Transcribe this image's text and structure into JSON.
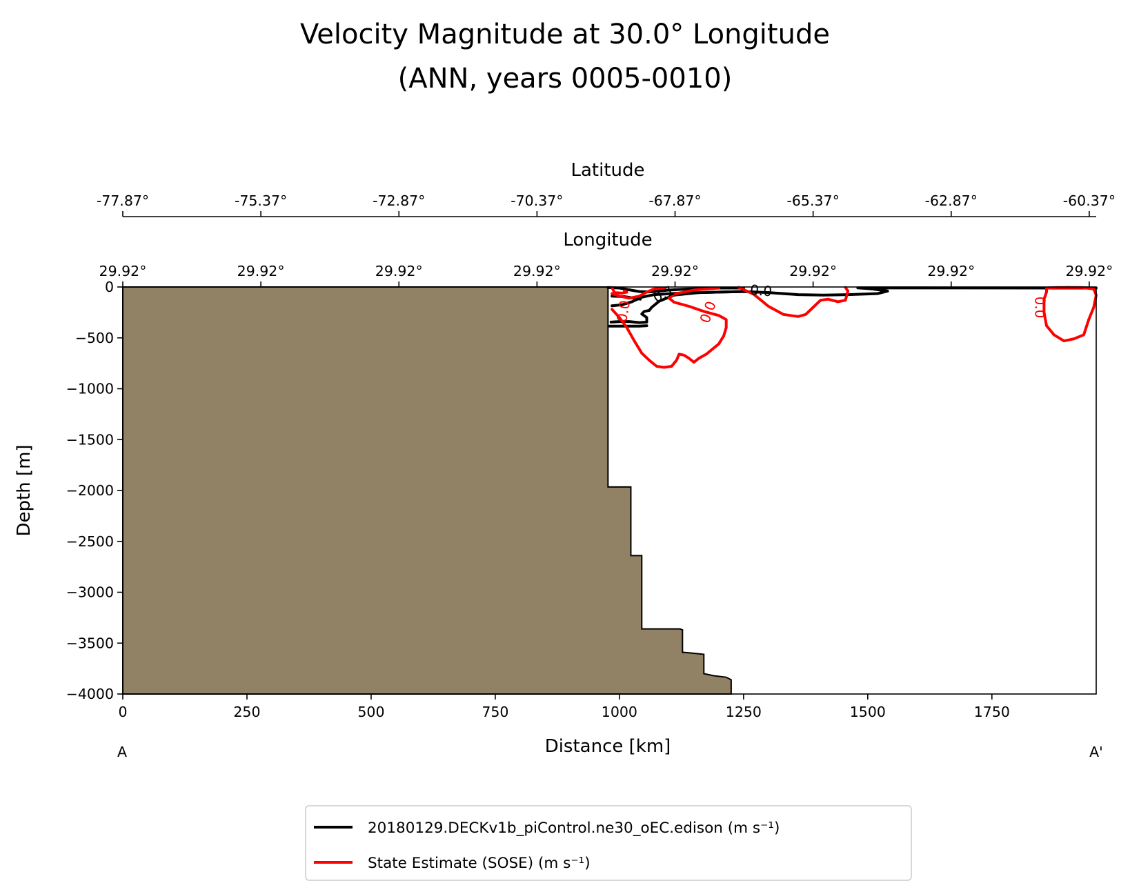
{
  "chart_data": {
    "type": "contour",
    "title": "Velocity Magnitude at 30.0° Longitude",
    "subtitle": "(ANN, years 0005-0010)",
    "xlabel": "Distance [km]",
    "ylabel": "Depth [m]",
    "xlim": [
      0,
      1960
    ],
    "ylim": [
      -4000,
      0
    ],
    "x_ticks": [
      0,
      250,
      500,
      750,
      1000,
      1250,
      1500,
      1750
    ],
    "x_tick_labels": [
      "0",
      "250",
      "500",
      "750",
      "1000",
      "1250",
      "1500",
      "1750"
    ],
    "y_ticks": [
      0,
      -500,
      -1000,
      -1500,
      -2000,
      -2500,
      -3000,
      -3500,
      -4000
    ],
    "y_tick_labels": [
      "0",
      "−500",
      "−1000",
      "−1500",
      "−2000",
      "−2500",
      "−3000",
      "−3500",
      "−4000"
    ],
    "start_label": "A",
    "end_label": "A'",
    "latitude_axis": {
      "label": "Latitude",
      "ticks": [
        0,
        278,
        556,
        834,
        1112,
        1390,
        1668,
        1946
      ],
      "tick_labels": [
        "-77.87°",
        "-75.37°",
        "-72.87°",
        "-70.37°",
        "-67.87°",
        "-65.37°",
        "-62.87°",
        "-60.37°"
      ]
    },
    "longitude_axis": {
      "label": "Longitude",
      "ticks": [
        0,
        278,
        556,
        834,
        1112,
        1390,
        1668,
        1946
      ],
      "tick_labels": [
        "29.92°",
        "29.92°",
        "29.92°",
        "29.92°",
        "29.92°",
        "29.92°",
        "29.92°",
        "29.92°"
      ]
    },
    "bathymetry": {
      "color": "#918266",
      "edge": [
        [
          0,
          0
        ],
        [
          977,
          0
        ],
        [
          977,
          -1965
        ],
        [
          1023,
          -1965
        ],
        [
          1023,
          -2640
        ],
        [
          1045,
          -2640
        ],
        [
          1045,
          -3360
        ],
        [
          1122,
          -3360
        ],
        [
          1127,
          -3370
        ],
        [
          1127,
          -3590
        ],
        [
          1140,
          -3595
        ],
        [
          1170,
          -3610
        ],
        [
          1170,
          -3800
        ],
        [
          1190,
          -3820
        ],
        [
          1215,
          -3835
        ],
        [
          1225,
          -3860
        ],
        [
          1225,
          -4000
        ]
      ]
    },
    "series": [
      {
        "name": "20180129.DECKv1b_piControl.ne30_oEC.edison (m s⁻¹)",
        "color": "#000000",
        "contours": [
          [
            [
              977,
              -5
            ],
            [
              1000,
              -10
            ],
            [
              1020,
              -28
            ],
            [
              1040,
              -45
            ],
            [
              1060,
              -48
            ],
            [
              1080,
              -40
            ],
            [
              1100,
              -30
            ]
          ],
          [
            [
              1100,
              -30
            ],
            [
              1140,
              -20
            ],
            [
              1200,
              -10
            ],
            [
              1250,
              -10
            ]
          ],
          [
            [
              985,
              -90
            ],
            [
              1010,
              -95
            ],
            [
              1030,
              -110
            ],
            [
              1042,
              -120
            ]
          ],
          [
            [
              985,
              -185
            ],
            [
              1005,
              -175
            ],
            [
              1025,
              -145
            ],
            [
              1045,
              -100
            ],
            [
              1070,
              -75
            ],
            [
              1120,
              -60
            ],
            [
              1200,
              -50
            ],
            [
              1250,
              -45
            ],
            [
              1300,
              -55
            ]
          ],
          [
            [
              1300,
              -55
            ],
            [
              1360,
              -75
            ],
            [
              1410,
              -80
            ],
            [
              1460,
              -75
            ],
            [
              1520,
              -65
            ],
            [
              1540,
              -40
            ],
            [
              1510,
              -20
            ],
            [
              1480,
              -8
            ],
            [
              1950,
              -10
            ]
          ],
          [
            [
              983,
              -345
            ],
            [
              1000,
              -340
            ],
            [
              1020,
              -340
            ],
            [
              1040,
              -350
            ],
            [
              1055,
              -345
            ],
            [
              1055,
              -300
            ],
            [
              1045,
              -265
            ],
            [
              1050,
              -240
            ],
            [
              1060,
              -230
            ]
          ],
          [
            [
              1060,
              -230
            ],
            [
              1065,
              -200
            ],
            [
              1080,
              -140
            ],
            [
              1110,
              -80
            ],
            [
              1160,
              -55
            ],
            [
              1250,
              -45
            ]
          ],
          [
            [
              980,
              -385
            ],
            [
              1040,
              -385
            ],
            [
              1055,
              -380
            ]
          ],
          [
            [
              1900,
              -5
            ],
            [
              1960,
              -10
            ]
          ]
        ],
        "labels": [
          {
            "x": 1285,
            "y": -45,
            "text": "0.0",
            "angle": 5
          },
          {
            "x": 1090,
            "y": -75,
            "text": "0.1",
            "angle": -25
          }
        ]
      },
      {
        "name": "State Estimate (SOSE) (m s⁻¹)",
        "color": "#ff0000",
        "contours": [
          [
            [
              985,
              -5
            ],
            [
              990,
              -55
            ],
            [
              1005,
              -60
            ],
            [
              1015,
              -50
            ],
            [
              1010,
              -40
            ]
          ],
          [
            [
              985,
              -65
            ],
            [
              1000,
              -90
            ],
            [
              1020,
              -110
            ],
            [
              1040,
              -90
            ],
            [
              1055,
              -50
            ],
            [
              1070,
              -20
            ],
            [
              1090,
              -10
            ]
          ],
          [
            [
              985,
              -220
            ],
            [
              1000,
              -300
            ],
            [
              1015,
              -400
            ],
            [
              1030,
              -530
            ],
            [
              1045,
              -650
            ],
            [
              1060,
              -720
            ],
            [
              1075,
              -780
            ],
            [
              1090,
              -790
            ],
            [
              1105,
              -780
            ],
            [
              1115,
              -720
            ],
            [
              1120,
              -660
            ],
            [
              1130,
              -670
            ],
            [
              1140,
              -700
            ],
            [
              1150,
              -740
            ],
            [
              1160,
              -700
            ],
            [
              1175,
              -660
            ],
            [
              1185,
              -620
            ],
            [
              1200,
              -560
            ]
          ],
          [
            [
              1200,
              -560
            ],
            [
              1210,
              -480
            ],
            [
              1215,
              -400
            ],
            [
              1215,
              -320
            ],
            [
              1200,
              -280
            ],
            [
              1170,
              -240
            ],
            [
              1140,
              -190
            ],
            [
              1110,
              -150
            ],
            [
              1100,
              -110
            ],
            [
              1110,
              -70
            ],
            [
              1150,
              -30
            ],
            [
              1200,
              -10
            ]
          ],
          [
            [
              1240,
              -5
            ],
            [
              1270,
              -70
            ],
            [
              1300,
              -190
            ],
            [
              1330,
              -270
            ],
            [
              1360,
              -290
            ],
            [
              1375,
              -270
            ],
            [
              1390,
              -200
            ],
            [
              1405,
              -130
            ],
            [
              1420,
              -120
            ],
            [
              1440,
              -145
            ],
            [
              1455,
              -130
            ],
            [
              1460,
              -40
            ],
            [
              1455,
              -5
            ]
          ],
          [
            [
              1860,
              -10
            ],
            [
              1860,
              -50
            ],
            [
              1855,
              -120
            ],
            [
              1855,
              -250
            ],
            [
              1860,
              -380
            ],
            [
              1875,
              -470
            ],
            [
              1895,
              -530
            ],
            [
              1915,
              -510
            ],
            [
              1935,
              -470
            ],
            [
              1945,
              -320
            ],
            [
              1955,
              -200
            ],
            [
              1960,
              -80
            ],
            [
              1955,
              -20
            ],
            [
              1930,
              -5
            ],
            [
              1880,
              -5
            ],
            [
              1860,
              -10
            ]
          ]
        ],
        "labels": [
          {
            "x": 1180,
            "y": -250,
            "text": "0.0",
            "angle": -70
          },
          {
            "x": 1010,
            "y": -240,
            "text": "0.0",
            "angle": -80
          },
          {
            "x": 1845,
            "y": -200,
            "text": "0.0",
            "angle": 90
          }
        ]
      }
    ],
    "legend": {
      "placement": "bottom-center",
      "entries": [
        {
          "label": "20180129.DECKv1b_piControl.ne30_oEC.edison (m s⁻¹)",
          "color": "#000000"
        },
        {
          "label": "State Estimate (SOSE) (m s⁻¹)",
          "color": "#ff0000"
        }
      ]
    }
  }
}
